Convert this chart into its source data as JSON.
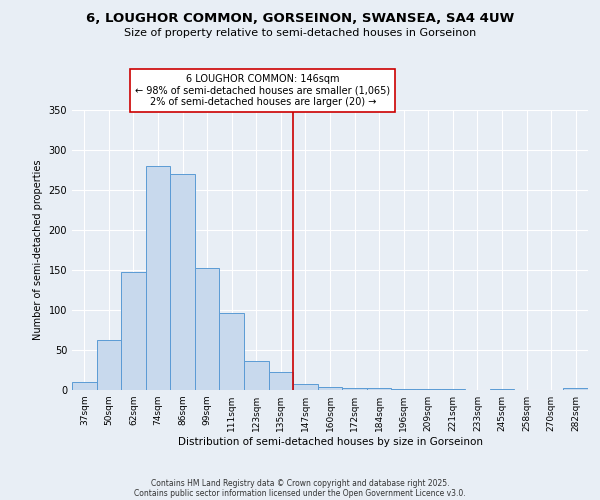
{
  "title1": "6, LOUGHOR COMMON, GORSEINON, SWANSEA, SA4 4UW",
  "title2": "Size of property relative to semi-detached houses in Gorseinon",
  "xlabel": "Distribution of semi-detached houses by size in Gorseinon",
  "ylabel": "Number of semi-detached properties",
  "categories": [
    "37sqm",
    "50sqm",
    "62sqm",
    "74sqm",
    "86sqm",
    "99sqm",
    "111sqm",
    "123sqm",
    "135sqm",
    "147sqm",
    "160sqm",
    "172sqm",
    "184sqm",
    "196sqm",
    "209sqm",
    "221sqm",
    "233sqm",
    "245sqm",
    "258sqm",
    "270sqm",
    "282sqm"
  ],
  "values": [
    10,
    63,
    148,
    280,
    270,
    152,
    96,
    36,
    22,
    8,
    4,
    3,
    3,
    1,
    1,
    1,
    0,
    1,
    0,
    0,
    3
  ],
  "bar_color": "#c8d9ed",
  "bar_edge_color": "#5b9bd5",
  "vline_color": "#cc0000",
  "annotation_title": "6 LOUGHOR COMMON: 146sqm",
  "annotation_line2": "← 98% of semi-detached houses are smaller (1,065)",
  "annotation_line3": "2% of semi-detached houses are larger (20) →",
  "annotation_box_color": "#ffffff",
  "annotation_box_edge": "#cc0000",
  "ylim": [
    0,
    350
  ],
  "yticks": [
    0,
    50,
    100,
    150,
    200,
    250,
    300,
    350
  ],
  "footer1": "Contains HM Land Registry data © Crown copyright and database right 2025.",
  "footer2": "Contains public sector information licensed under the Open Government Licence v3.0.",
  "bg_color": "#e8eef5",
  "plot_bg_color": "#e8eef5",
  "vline_bin": 9
}
